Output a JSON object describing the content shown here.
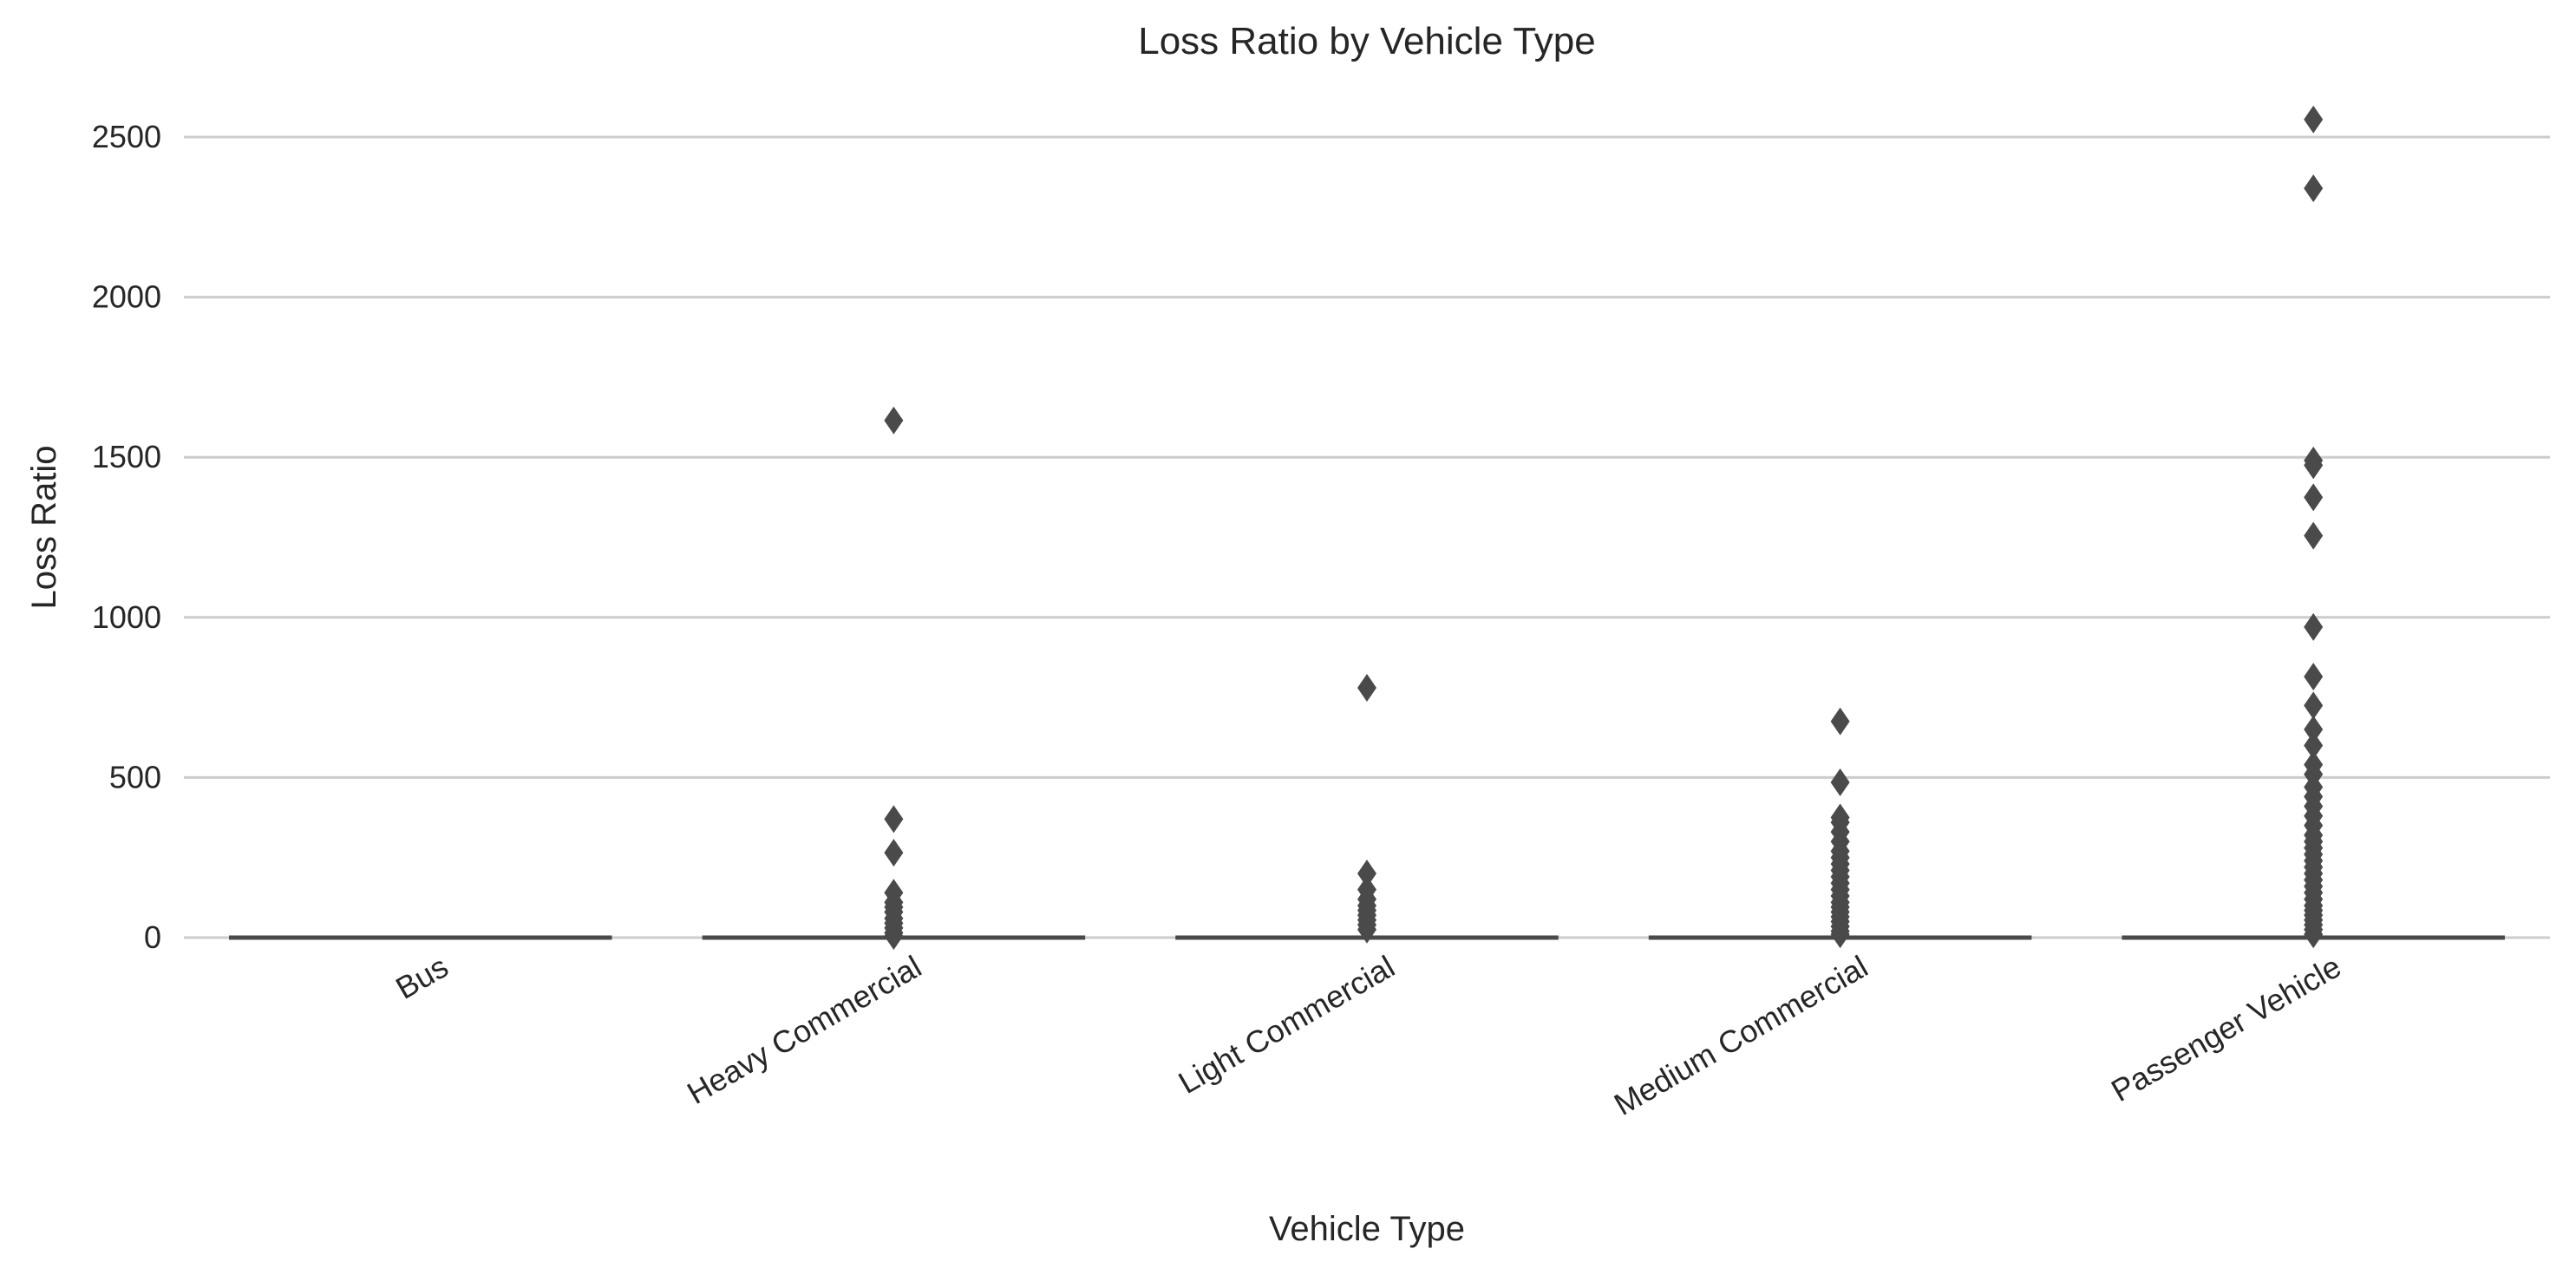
{
  "chart_data": {
    "type": "box",
    "title": "Loss Ratio by Vehicle Type",
    "xlabel": "Vehicle Type",
    "ylabel": "Loss Ratio",
    "ylim": [
      -120,
      2650
    ],
    "yticks": [
      0,
      500,
      1000,
      1500,
      2000,
      2500
    ],
    "grid": "horizontal",
    "categories": [
      "Bus",
      "Heavy Commercial",
      "Light Commercial",
      "Medium Commercial",
      "Passenger Vehicle"
    ],
    "series": [
      {
        "category": "Bus",
        "q1": 0,
        "median": 0,
        "q3": 0,
        "whisker_low": 0,
        "whisker_high": 0,
        "outliers": []
      },
      {
        "category": "Heavy Commercial",
        "q1": 0,
        "median": 0,
        "q3": 0,
        "whisker_low": 0,
        "whisker_high": 0,
        "outliers": [
          1615,
          370,
          265,
          140,
          110,
          95,
          80,
          60,
          45,
          30,
          15,
          5
        ]
      },
      {
        "category": "Light Commercial",
        "q1": 0,
        "median": 0,
        "q3": 0,
        "whisker_low": 0,
        "whisker_high": 0,
        "outliers": [
          780,
          200,
          150,
          120,
          100,
          85,
          70,
          55,
          40,
          25
        ]
      },
      {
        "category": "Medium Commercial",
        "q1": 0,
        "median": 0,
        "q3": 0,
        "whisker_low": 0,
        "whisker_high": 0,
        "outliers": [
          675,
          485,
          375,
          360,
          330,
          300,
          270,
          250,
          230,
          210,
          190,
          170,
          150,
          130,
          110,
          95,
          80,
          65,
          50,
          35,
          20,
          10
        ]
      },
      {
        "category": "Passenger Vehicle",
        "q1": 0,
        "median": 0,
        "q3": 0,
        "whisker_low": 0,
        "whisker_high": 0,
        "outliers": [
          2555,
          2340,
          1490,
          1475,
          1375,
          1255,
          970,
          815,
          725,
          650,
          600,
          540,
          510,
          470,
          440,
          410,
          380,
          350,
          320,
          300,
          280,
          260,
          240,
          220,
          200,
          180,
          160,
          140,
          120,
          100,
          85,
          70,
          55,
          40,
          25,
          10
        ]
      }
    ],
    "colors": {
      "box": "#4a4a4a",
      "grid": "#cccccc",
      "text": "#262626"
    }
  }
}
